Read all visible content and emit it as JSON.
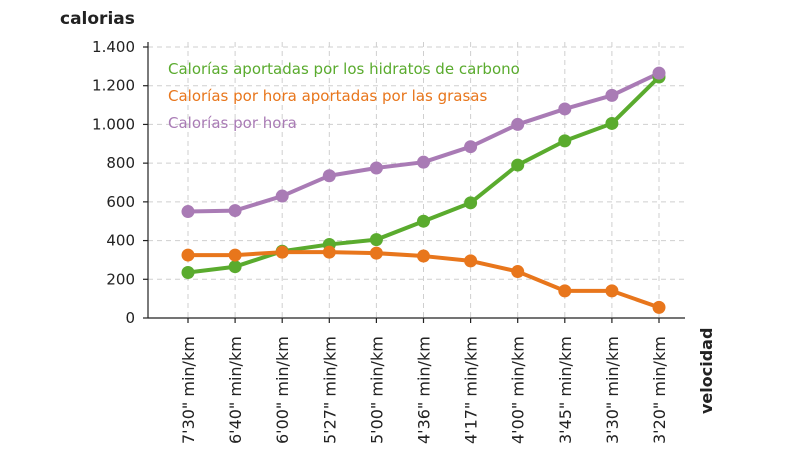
{
  "chart_data": {
    "type": "line",
    "ylabel": "calorias",
    "xlabel": "velocidad",
    "ylim": [
      0,
      1400
    ],
    "yticks": [
      {
        "value": 0,
        "label": "0"
      },
      {
        "value": 200,
        "label": "200"
      },
      {
        "value": 400,
        "label": "400"
      },
      {
        "value": 600,
        "label": "600"
      },
      {
        "value": 800,
        "label": "800"
      },
      {
        "value": 1000,
        "label": "1.000"
      },
      {
        "value": 1200,
        "label": "1.200"
      },
      {
        "value": 1400,
        "label": "1.400"
      }
    ],
    "grid": true,
    "legend_position": "top-left",
    "categories": [
      "7'30\" min/km",
      "6'40\" min/km",
      "6'00\" min/km",
      "5'27\" min/km",
      "5'00\" min/km",
      "4'36\" min/km",
      "4'17\" min/km",
      "4'00\" min/km",
      "3'45\" min/km",
      "3'30\" min/km",
      "3'20\" min/km"
    ],
    "series": [
      {
        "name": "Calorías aportadas por los hidratos de carbono",
        "color": "#5aab2e",
        "values": [
          235,
          265,
          345,
          380,
          405,
          500,
          595,
          790,
          915,
          1005,
          1245
        ]
      },
      {
        "name": "Calorías por hora aportadas por las grasas",
        "color": "#e8761c",
        "values": [
          325,
          325,
          340,
          340,
          335,
          320,
          295,
          240,
          140,
          140,
          55
        ]
      },
      {
        "name": "Calorías por hora",
        "color": "#a97bb5",
        "values": [
          550,
          555,
          630,
          735,
          775,
          805,
          885,
          1000,
          1080,
          1150,
          1265
        ]
      }
    ]
  }
}
